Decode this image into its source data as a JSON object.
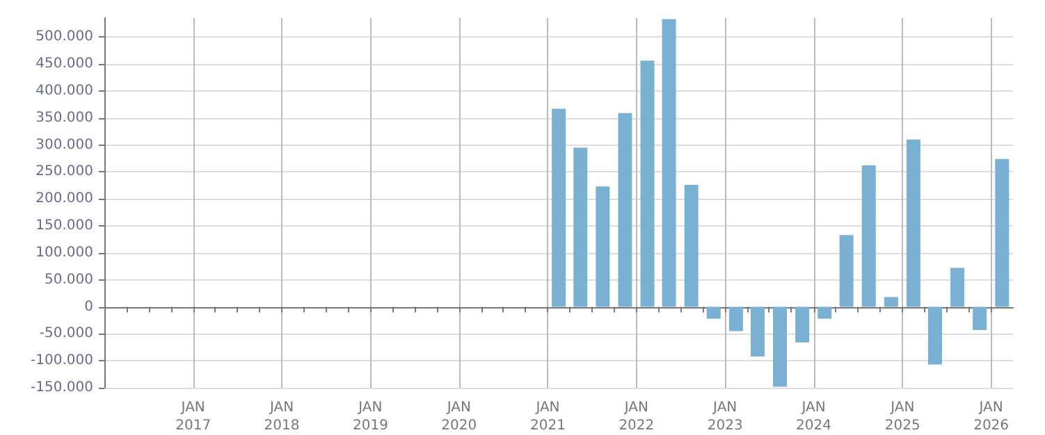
{
  "chart_data": {
    "type": "bar",
    "x": [
      "2021-02-15",
      "2021-05-15",
      "2021-08-15",
      "2021-11-15",
      "2022-02-15",
      "2022-05-15",
      "2022-08-15",
      "2022-11-15",
      "2023-02-15",
      "2023-05-15",
      "2023-08-15",
      "2023-11-15",
      "2024-02-15",
      "2024-05-15",
      "2024-08-15",
      "2024-11-15",
      "2025-02-15",
      "2025-05-15",
      "2025-08-15",
      "2025-11-15",
      "2026-02-15"
    ],
    "values": [
      367000,
      295000,
      223000,
      359000,
      456000,
      533000,
      226000,
      -22000,
      -45000,
      -92000,
      -148000,
      -66000,
      -22000,
      133000,
      262000,
      18000,
      310000,
      -107000,
      72000,
      -43000,
      274000
    ],
    "color": "#7ab1d2",
    "xlim": [
      "2016-01-01",
      "2026-04-01"
    ],
    "xticks": [
      {
        "value": "2016-04-01",
        "label": null
      },
      {
        "value": "2016-07-01",
        "label": null
      },
      {
        "value": "2016-10-01",
        "label": null
      },
      {
        "value": "2017-01-01",
        "label": "JAN\n2017"
      },
      {
        "value": "2017-04-01",
        "label": null
      },
      {
        "value": "2017-07-01",
        "label": null
      },
      {
        "value": "2017-10-01",
        "label": null
      },
      {
        "value": "2018-01-01",
        "label": "JAN\n2018"
      },
      {
        "value": "2018-04-01",
        "label": null
      },
      {
        "value": "2018-07-01",
        "label": null
      },
      {
        "value": "2018-10-01",
        "label": null
      },
      {
        "value": "2019-01-01",
        "label": "JAN\n2019"
      },
      {
        "value": "2019-04-01",
        "label": null
      },
      {
        "value": "2019-07-01",
        "label": null
      },
      {
        "value": "2019-10-01",
        "label": null
      },
      {
        "value": "2020-01-01",
        "label": "JAN\n2020"
      },
      {
        "value": "2020-04-01",
        "label": null
      },
      {
        "value": "2020-07-01",
        "label": null
      },
      {
        "value": "2020-10-01",
        "label": null
      },
      {
        "value": "2021-01-01",
        "label": "JAN\n2021"
      },
      {
        "value": "2021-04-01",
        "label": null
      },
      {
        "value": "2021-07-01",
        "label": null
      },
      {
        "value": "2021-10-01",
        "label": null
      },
      {
        "value": "2022-01-01",
        "label": "JAN\n2022"
      },
      {
        "value": "2022-04-01",
        "label": null
      },
      {
        "value": "2022-07-01",
        "label": null
      },
      {
        "value": "2022-10-01",
        "label": null
      },
      {
        "value": "2023-01-01",
        "label": "JAN\n2023"
      },
      {
        "value": "2023-04-01",
        "label": null
      },
      {
        "value": "2023-07-01",
        "label": null
      },
      {
        "value": "2023-10-01",
        "label": null
      },
      {
        "value": "2024-01-01",
        "label": "JAN\n2024"
      },
      {
        "value": "2024-04-01",
        "label": null
      },
      {
        "value": "2024-07-01",
        "label": null
      },
      {
        "value": "2024-10-01",
        "label": null
      },
      {
        "value": "2025-01-01",
        "label": "JAN\n2025"
      },
      {
        "value": "2025-04-01",
        "label": null
      },
      {
        "value": "2025-07-01",
        "label": null
      },
      {
        "value": "2025-10-01",
        "label": null
      },
      {
        "value": "2026-01-01",
        "label": "JAN\n2026"
      }
    ],
    "ylim": [
      -150000,
      535000
    ],
    "yticks": [
      {
        "value": -150000,
        "label": "-150.000"
      },
      {
        "value": -100000,
        "label": "-100.000"
      },
      {
        "value": -50000,
        "label": "-50.000"
      },
      {
        "value": 0,
        "label": "0"
      },
      {
        "value": 50000,
        "label": "50.000"
      },
      {
        "value": 100000,
        "label": "100.000"
      },
      {
        "value": 150000,
        "label": "150.000"
      },
      {
        "value": 200000,
        "label": "200.000"
      },
      {
        "value": 250000,
        "label": "250.000"
      },
      {
        "value": 300000,
        "label": "300.000"
      },
      {
        "value": 350000,
        "label": "350.000"
      },
      {
        "value": 400000,
        "label": "400.000"
      },
      {
        "value": 450000,
        "label": "450.000"
      },
      {
        "value": 500000,
        "label": "500.000"
      }
    ],
    "grid": true
  }
}
